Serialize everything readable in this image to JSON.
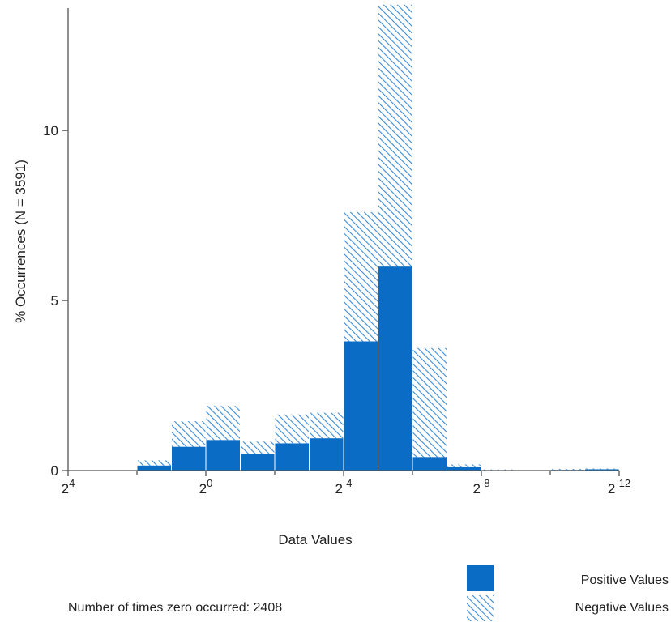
{
  "chart_data": {
    "type": "bar",
    "stacked": true,
    "xlabel": "Data Values",
    "ylabel": "% Occurrences (N = 3591)",
    "ylim": [
      0,
      13.6
    ],
    "y_ticks": [
      0,
      5,
      10
    ],
    "x_axis": {
      "scale": "log2, decreasing",
      "exponent_range": [
        4,
        -12
      ],
      "tick_labels": [
        {
          "base": "2",
          "exp": "4"
        },
        {
          "base": "2",
          "exp": "0"
        },
        {
          "base": "2",
          "exp": "-4"
        },
        {
          "base": "2",
          "exp": "-8"
        },
        {
          "base": "2",
          "exp": "-12"
        }
      ],
      "tick_exponents": [
        4,
        0,
        -4,
        -8,
        -12
      ]
    },
    "bin_exponents": [
      [
        2,
        1
      ],
      [
        1,
        0
      ],
      [
        0,
        -1
      ],
      [
        -1,
        -2
      ],
      [
        -2,
        -3
      ],
      [
        -3,
        -4
      ],
      [
        -4,
        -5
      ],
      [
        -5,
        -6
      ],
      [
        -6,
        -7
      ],
      [
        -7,
        -8
      ],
      [
        -8,
        -9
      ],
      [
        -9,
        -10
      ],
      [
        -10,
        -11
      ],
      [
        -11,
        -12
      ]
    ],
    "series": [
      {
        "name": "Positive Values",
        "color": "#0a6cc4",
        "fill": "solid",
        "values": [
          0.15,
          0.7,
          0.9,
          0.5,
          0.8,
          0.95,
          3.8,
          6.0,
          0.4,
          0.1,
          0.0,
          0.0,
          0.02,
          0.04
        ]
      },
      {
        "name": "Negative Values",
        "color": "#0a6cc4",
        "fill": "hatched",
        "values": [
          0.15,
          0.75,
          1.0,
          0.35,
          0.85,
          0.75,
          3.8,
          7.7,
          3.2,
          0.08,
          0.03,
          0.0,
          0.03,
          0.02
        ]
      }
    ],
    "legend_position": "bottom-right",
    "annotation": "Number of times zero occurred: 2408",
    "grid": false
  }
}
